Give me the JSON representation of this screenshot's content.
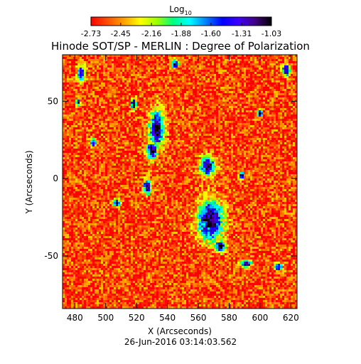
{
  "chart_data": {
    "type": "heatmap",
    "title": "Hinode SOT/SP - MERLIN : Degree of Polarization",
    "subtitle": "26-Jun-2016 03:14:03.562",
    "xlabel": "X (Arcseconds)",
    "ylabel": "Y (Arcseconds)",
    "xlim": [
      472,
      624
    ],
    "ylim": [
      -84,
      80
    ],
    "x_ticks": [
      480,
      500,
      520,
      540,
      560,
      580,
      600,
      620
    ],
    "y_ticks": [
      -50,
      0,
      50
    ],
    "colorbar": {
      "label_main": "Log",
      "label_sub": "10",
      "tick_labels": [
        "-2.73",
        "-2.45",
        "-2.16",
        "-1.88",
        "-1.60",
        "-1.31",
        "-1.03"
      ],
      "range": [
        -2.73,
        -1.03
      ],
      "colormap": [
        "#ff0000",
        "#ff5000",
        "#ffa000",
        "#ffff00",
        "#a0ff00",
        "#00ff80",
        "#00ffff",
        "#0080ff",
        "#0000ff",
        "#4000ff",
        "#400080",
        "#000000"
      ]
    },
    "features": {
      "background_value": -2.6,
      "enhanced_value": -1.6,
      "regions": [
        {
          "x": 533,
          "y": 32,
          "rx": 4,
          "ry": 10
        },
        {
          "x": 530,
          "y": 18,
          "rx": 3,
          "ry": 5
        },
        {
          "x": 566,
          "y": 8,
          "rx": 4,
          "ry": 5
        },
        {
          "x": 568,
          "y": -27,
          "rx": 7,
          "ry": 11
        },
        {
          "x": 574,
          "y": -44,
          "rx": 3,
          "ry": 3
        },
        {
          "x": 527,
          "y": -5,
          "rx": 2,
          "ry": 4
        },
        {
          "x": 507,
          "y": -16,
          "rx": 2,
          "ry": 2
        },
        {
          "x": 484,
          "y": 68,
          "rx": 2,
          "ry": 4
        },
        {
          "x": 482,
          "y": 49,
          "rx": 1,
          "ry": 2
        },
        {
          "x": 518,
          "y": 48,
          "rx": 1.5,
          "ry": 3
        },
        {
          "x": 588,
          "y": 2,
          "rx": 1.5,
          "ry": 2
        },
        {
          "x": 600,
          "y": 42,
          "rx": 1.5,
          "ry": 2
        },
        {
          "x": 617,
          "y": 70,
          "rx": 2,
          "ry": 3
        },
        {
          "x": 612,
          "y": -57,
          "rx": 2,
          "ry": 2
        },
        {
          "x": 591,
          "y": -55,
          "rx": 3,
          "ry": 2
        },
        {
          "x": 545,
          "y": 74,
          "rx": 2,
          "ry": 2
        },
        {
          "x": 492,
          "y": 23,
          "rx": 1.5,
          "ry": 2
        }
      ]
    }
  }
}
